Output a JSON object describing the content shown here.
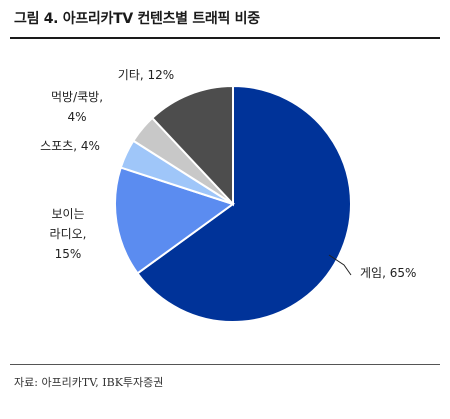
{
  "title": "그림 4. 아프리카TV 컨텐츠별 트래픽 비중",
  "source": "자료: 아프리카TV, IBK투자증권",
  "chart_data": {
    "type": "pie",
    "unit": "%",
    "slices": [
      {
        "name": "게임",
        "value": 65,
        "color": "#003399",
        "label_lines": [
          "게임, 65%"
        ]
      },
      {
        "name": "보이는 라디오",
        "value": 15,
        "color": "#5b8cf0",
        "label_lines": [
          "보이는",
          "라디오,",
          "15%"
        ]
      },
      {
        "name": "스포츠",
        "value": 4,
        "color": "#9fc6f9",
        "label_lines": [
          "스포츠, 4%"
        ]
      },
      {
        "name": "먹방/쿡방",
        "value": 4,
        "color": "#c8c8c8",
        "label_lines": [
          "먹방/쿡방,",
          "4%"
        ]
      },
      {
        "name": "기타",
        "value": 12,
        "color": "#4d4d4d",
        "label_lines": [
          "기타, 12%"
        ]
      }
    ]
  }
}
